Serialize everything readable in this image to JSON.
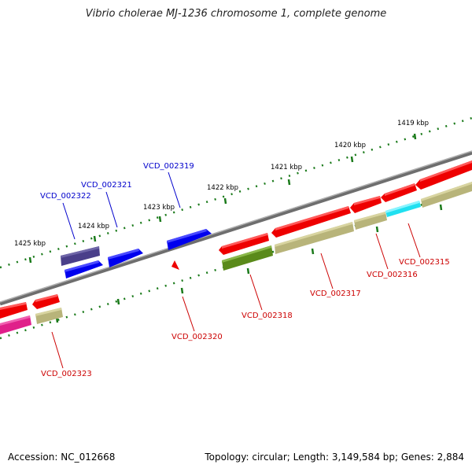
{
  "title": "Vibrio cholerae MJ-1236 chromosome 1, complete genome",
  "footer": {
    "accession": "Accession: NC_012668",
    "summary": "Topology: circular; Length: 3,149,584 bp; Genes: 2,884"
  },
  "colors": {
    "backbone": "#888888",
    "tick": "#1a7a1a",
    "forward_label": "#0000cc",
    "reverse_label": "#cc0000"
  },
  "scale_ticks": [
    {
      "label": "1425 kbp"
    },
    {
      "label": "1424 kbp"
    },
    {
      "label": "1423 kbp"
    },
    {
      "label": "1422 kbp"
    },
    {
      "label": "1421 kbp"
    },
    {
      "label": "1420 kbp"
    },
    {
      "label": "1419 kbp"
    }
  ],
  "gene_labels": [
    {
      "id": "VCD_002322",
      "strand": "forward"
    },
    {
      "id": "VCD_002321",
      "strand": "forward"
    },
    {
      "id": "VCD_002319",
      "strand": "forward"
    },
    {
      "id": "VCD_002323",
      "strand": "reverse"
    },
    {
      "id": "VCD_002320",
      "strand": "reverse"
    },
    {
      "id": "VCD_002318",
      "strand": "reverse"
    },
    {
      "id": "VCD_002317",
      "strand": "reverse"
    },
    {
      "id": "VCD_002316",
      "strand": "reverse"
    },
    {
      "id": "VCD_002315",
      "strand": "reverse"
    }
  ],
  "feature_colors": {
    "red": "#ee0000",
    "blue": "#0000ee",
    "purple": "#4a3f8a",
    "khaki": "#b8b47a",
    "olive": "#5a8a1a",
    "magenta": "#e0208a",
    "cyan": "#20e0f0"
  }
}
